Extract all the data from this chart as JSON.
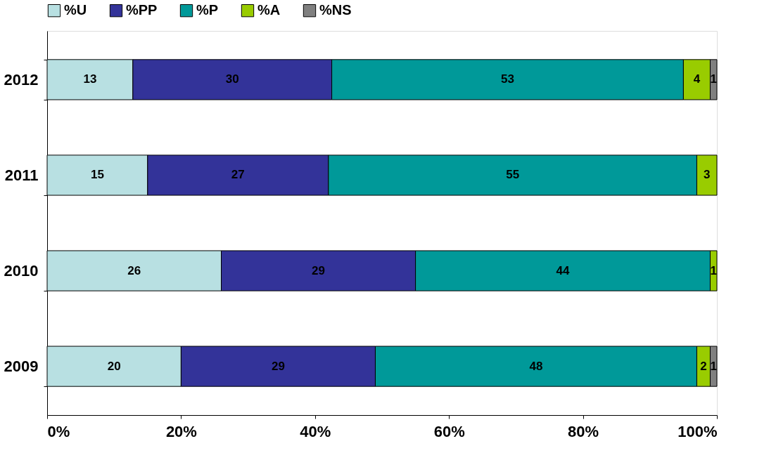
{
  "chart_data": {
    "type": "bar",
    "orientation": "horizontal",
    "stacked": true,
    "categories": [
      "2012",
      "2011",
      "2010",
      "2009"
    ],
    "series": [
      {
        "name": "%U",
        "color": "#b8e0e2",
        "values": [
          12.8,
          15,
          26,
          20
        ],
        "value_labels": [
          "13",
          "15",
          "26",
          "20"
        ]
      },
      {
        "name": "%PP",
        "color": "#333399",
        "values": [
          29.7,
          27,
          29,
          29
        ],
        "value_labels": [
          "30",
          "27",
          "29",
          "29"
        ]
      },
      {
        "name": "%P",
        "color": "#009999",
        "values": [
          52.5,
          55,
          44,
          48
        ],
        "value_labels": [
          "53",
          "55",
          "44",
          "48"
        ]
      },
      {
        "name": "%A",
        "color": "#99cc00",
        "values": [
          4,
          3,
          1,
          2
        ],
        "value_labels": [
          "4",
          "3",
          "1",
          "2"
        ]
      },
      {
        "name": "%NS",
        "color": "#808080",
        "values": [
          1,
          null,
          null,
          1
        ],
        "value_labels": [
          "1",
          null,
          null,
          "1"
        ]
      }
    ],
    "xlim": [
      0,
      100
    ],
    "xticks": [
      {
        "value": 0,
        "label": "0%"
      },
      {
        "value": 20,
        "label": "20%"
      },
      {
        "value": 40,
        "label": "40%"
      },
      {
        "value": 60,
        "label": "60%"
      },
      {
        "value": 80,
        "label": "80%"
      },
      {
        "value": 100,
        "label": "100%"
      }
    ],
    "legend": "top",
    "grid": false
  }
}
